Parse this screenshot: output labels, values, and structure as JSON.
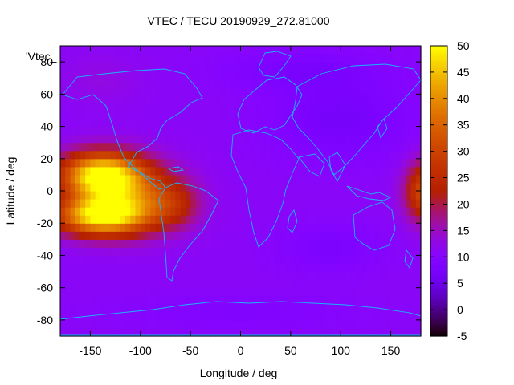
{
  "chart_data": {
    "type": "heatmap",
    "title": "VTEC / TECU 20190929_272.81000",
    "xlabel": "Longitude / deg",
    "ylabel": "Latitude / deg",
    "legend_label": "'Vtec_",
    "xlim": [
      -180,
      180
    ],
    "ylim": [
      -90,
      90
    ],
    "x_ticks": [
      -150,
      -100,
      -50,
      0,
      50,
      100,
      150
    ],
    "y_ticks": [
      -80,
      -60,
      -40,
      -20,
      0,
      20,
      40,
      60,
      80
    ],
    "colorbar": {
      "range": [
        -5,
        50
      ],
      "ticks": [
        -5,
        0,
        5,
        10,
        15,
        20,
        25,
        30,
        35,
        40,
        45,
        50
      ],
      "palette": "gnuplot pm3d (black-purple-red-orange-yellow)"
    },
    "field": {
      "background_vtec": 11,
      "features": [
        {
          "lon": -140,
          "lat": 10,
          "lon_width": 40,
          "lat_width": 14,
          "vtec": 38
        },
        {
          "lon": -140,
          "lat": -15,
          "lon_width": 45,
          "lat_width": 12,
          "vtec": 36
        },
        {
          "lon": -105,
          "lat": -3,
          "lon_width": 45,
          "lat_width": 20,
          "vtec": 18
        },
        {
          "lon": -65,
          "lat": -8,
          "lon_width": 25,
          "lat_width": 14,
          "vtec": 8
        },
        {
          "lon": 185,
          "lat": 0,
          "lon_width": 20,
          "lat_width": 18,
          "vtec": 22
        },
        {
          "lon": 100,
          "lat": 45,
          "lon_width": 70,
          "lat_width": 25,
          "vtec": -4
        },
        {
          "lon": 60,
          "lat": 75,
          "lon_width": 80,
          "lat_width": 12,
          "vtec": -3
        },
        {
          "lon": 90,
          "lat": -35,
          "lon_width": 50,
          "lat_width": 15,
          "vtec": -3
        },
        {
          "lon": 0,
          "lat": -75,
          "lon_width": 120,
          "lat_width": 10,
          "vtec": -2
        },
        {
          "lon": -140,
          "lat": 70,
          "lon_width": 40,
          "lat_width": 15,
          "vtec": 2
        }
      ]
    }
  }
}
